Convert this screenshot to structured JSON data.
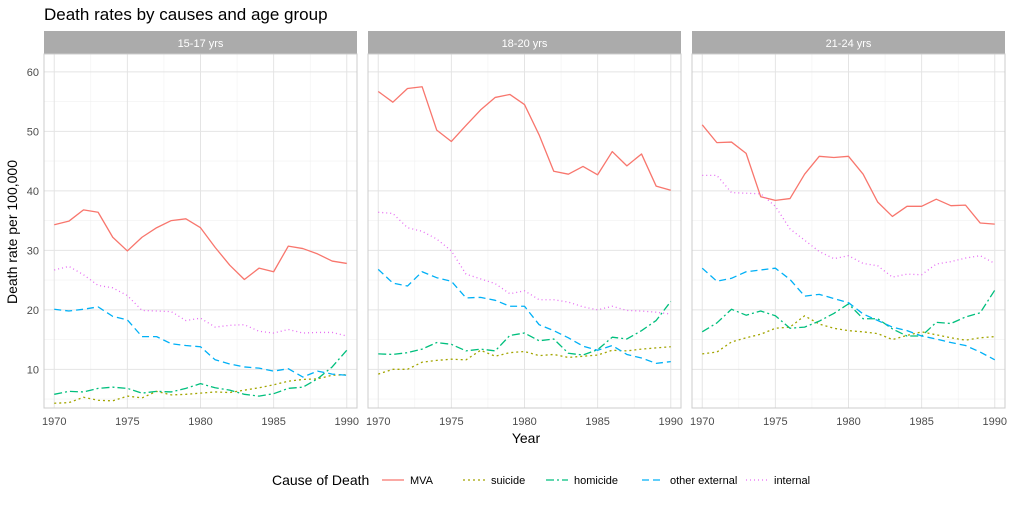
{
  "chart_data": {
    "type": "line",
    "title": "Death rates by causes and age group",
    "xlabel": "Year",
    "ylabel": "Death rate per 100,000",
    "xlim": [
      1969.3,
      1990.7
    ],
    "ylim": [
      3.5,
      63
    ],
    "x_ticks": [
      1970,
      1975,
      1980,
      1985,
      1990
    ],
    "y_ticks": [
      10,
      20,
      30,
      40,
      50,
      60
    ],
    "grid": true,
    "legend_position": "bottom",
    "legend_title": "Cause of Death",
    "x": [
      1970,
      1971,
      1972,
      1973,
      1974,
      1975,
      1976,
      1977,
      1978,
      1979,
      1980,
      1981,
      1982,
      1983,
      1984,
      1985,
      1986,
      1987,
      1988,
      1989,
      1990
    ],
    "series_styles": [
      {
        "name": "MVA",
        "color": "#F8766D",
        "dash": ""
      },
      {
        "name": "suicide",
        "color": "#A3A500",
        "dash": "2,3"
      },
      {
        "name": "homicide",
        "color": "#00BF7D",
        "dash": "8,3,2,3"
      },
      {
        "name": "other external",
        "color": "#00B0F6",
        "dash": "7,4"
      },
      {
        "name": "internal",
        "color": "#E76BF3",
        "dash": "1,3"
      }
    ],
    "panels": [
      {
        "label": "15-17 yrs",
        "series": [
          {
            "name": "MVA",
            "values": [
              34.3,
              34.9,
              36.8,
              36.4,
              32.2,
              29.9,
              32.2,
              33.8,
              35.0,
              35.3,
              33.8,
              30.5,
              27.5,
              25.1,
              27.0,
              26.4,
              30.7,
              30.3,
              29.4,
              28.2,
              27.8
            ]
          },
          {
            "name": "suicide",
            "values": [
              4.3,
              4.4,
              5.3,
              4.8,
              4.7,
              5.5,
              5.2,
              6.3,
              5.7,
              5.8,
              6.0,
              6.2,
              6.1,
              6.5,
              6.9,
              7.4,
              8.0,
              8.3,
              8.4,
              9.0,
              9.1
            ]
          },
          {
            "name": "homicide",
            "values": [
              5.8,
              6.3,
              6.2,
              6.8,
              7.0,
              6.8,
              6.0,
              6.3,
              6.2,
              6.8,
              7.6,
              6.9,
              6.5,
              5.8,
              5.5,
              5.9,
              6.8,
              7.0,
              8.4,
              10.4,
              13.2
            ]
          },
          {
            "name": "other external",
            "values": [
              20.1,
              19.8,
              20.1,
              20.5,
              18.9,
              18.3,
              15.5,
              15.5,
              14.3,
              14.0,
              13.8,
              11.6,
              10.9,
              10.4,
              10.2,
              9.7,
              10.1,
              8.7,
              9.7,
              9.2,
              9.0
            ]
          },
          {
            "name": "internal",
            "values": [
              26.7,
              27.3,
              25.9,
              24.1,
              23.7,
              22.4,
              19.9,
              19.8,
              19.7,
              18.2,
              18.6,
              17.1,
              17.4,
              17.5,
              16.4,
              16.1,
              16.7,
              16.1,
              16.2,
              16.2,
              15.6
            ]
          }
        ]
      },
      {
        "label": "18-20 yrs",
        "series": [
          {
            "name": "MVA",
            "values": [
              56.7,
              54.9,
              57.2,
              57.5,
              50.2,
              48.3,
              51.0,
              53.6,
              55.7,
              56.2,
              54.5,
              49.4,
              43.3,
              42.8,
              44.1,
              42.7,
              46.6,
              44.2,
              46.2,
              40.8,
              40.1
            ]
          },
          {
            "name": "suicide",
            "values": [
              9.2,
              10.0,
              10.0,
              11.2,
              11.5,
              11.7,
              11.6,
              13.2,
              12.2,
              12.8,
              13.0,
              12.3,
              12.5,
              12.0,
              12.2,
              12.4,
              13.2,
              13.1,
              13.4,
              13.6,
              13.8
            ]
          },
          {
            "name": "homicide",
            "values": [
              12.6,
              12.5,
              12.8,
              13.4,
              14.5,
              14.2,
              13.1,
              13.4,
              13.1,
              15.7,
              16.1,
              14.8,
              15.1,
              12.7,
              12.4,
              13.3,
              15.4,
              15.1,
              16.5,
              18.2,
              21.4
            ]
          },
          {
            "name": "other external",
            "values": [
              26.8,
              24.5,
              24.0,
              26.4,
              25.4,
              24.8,
              22.0,
              22.1,
              21.6,
              20.6,
              20.6,
              17.5,
              16.5,
              15.3,
              13.9,
              13.2,
              14.0,
              12.5,
              11.9,
              11.0,
              11.3
            ]
          },
          {
            "name": "internal",
            "values": [
              36.4,
              36.2,
              33.8,
              33.2,
              31.9,
              29.9,
              26.0,
              25.2,
              24.4,
              22.7,
              23.2,
              21.7,
              21.7,
              21.3,
              20.5,
              20.0,
              20.6,
              19.9,
              19.8,
              19.6,
              19.3
            ]
          }
        ]
      },
      {
        "label": "21-24 yrs",
        "series": [
          {
            "name": "MVA",
            "values": [
              51.1,
              48.1,
              48.2,
              46.3,
              39.0,
              38.4,
              38.7,
              42.8,
              45.8,
              45.6,
              45.8,
              42.8,
              38.1,
              35.7,
              37.4,
              37.4,
              38.6,
              37.5,
              37.6,
              34.6,
              34.4
            ]
          },
          {
            "name": "suicide",
            "values": [
              12.6,
              12.9,
              14.6,
              15.3,
              15.9,
              16.9,
              17.1,
              19.0,
              17.6,
              16.9,
              16.5,
              16.3,
              16.0,
              15.0,
              15.7,
              16.3,
              15.8,
              15.3,
              14.9,
              15.3,
              15.5
            ]
          },
          {
            "name": "homicide",
            "values": [
              16.3,
              17.8,
              20.1,
              19.1,
              19.8,
              19.0,
              16.9,
              17.1,
              18.1,
              19.4,
              21.0,
              18.5,
              18.5,
              16.8,
              15.6,
              15.6,
              17.9,
              17.7,
              18.8,
              19.5,
              23.3
            ]
          },
          {
            "name": "other external",
            "values": [
              27.0,
              24.8,
              25.3,
              26.4,
              26.7,
              27.0,
              25.1,
              22.3,
              22.6,
              21.9,
              21.2,
              19.3,
              18.2,
              17.1,
              16.5,
              15.6,
              15.1,
              14.5,
              14.0,
              12.9,
              11.6
            ]
          },
          {
            "name": "internal",
            "values": [
              42.6,
              42.6,
              39.7,
              39.6,
              39.5,
              37.4,
              33.6,
              31.7,
              29.8,
              28.6,
              29.1,
              27.8,
              27.4,
              25.5,
              26.0,
              25.9,
              27.7,
              28.1,
              28.7,
              29.1,
              27.8
            ]
          }
        ]
      }
    ]
  }
}
